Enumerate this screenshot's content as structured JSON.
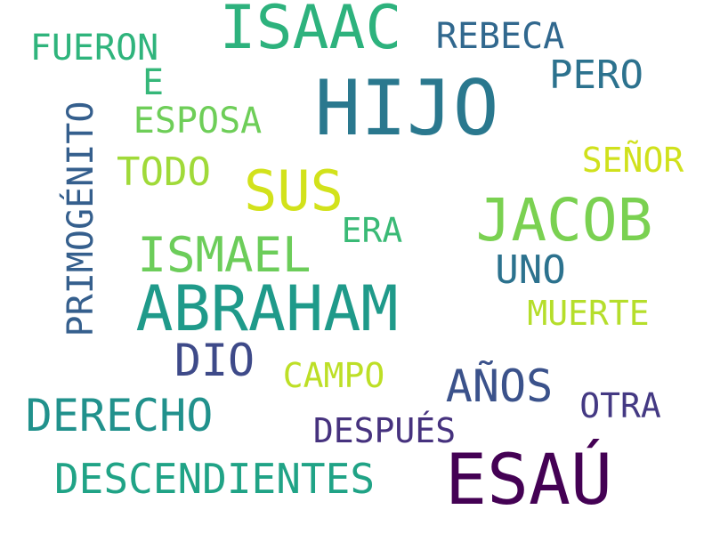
{
  "words": [
    {
      "text": "HIJO",
      "color": "#2a788e"
    },
    {
      "text": "ISAAC",
      "color": "#2db27d"
    },
    {
      "text": "ESAÚ",
      "color": "#440154"
    },
    {
      "text": "ABRAHAM",
      "color": "#1f9a8a"
    },
    {
      "text": "JACOB",
      "color": "#7ad151"
    },
    {
      "text": "SUS",
      "color": "#d2e21b"
    },
    {
      "text": "ISMAEL",
      "color": "#6ccd5a"
    },
    {
      "text": "DERECHO",
      "color": "#21918c"
    },
    {
      "text": "DESCENDIENTES",
      "color": "#20a386"
    },
    {
      "text": "AÑOS",
      "color": "#3b528b"
    },
    {
      "text": "DIO",
      "color": "#3e4a89"
    },
    {
      "text": "PRIMOGÉNITO",
      "color": "#355f8d"
    },
    {
      "text": "PERO",
      "color": "#2c728e"
    },
    {
      "text": "REBECA",
      "color": "#31688e"
    },
    {
      "text": "FUERON",
      "color": "#2fb47c"
    },
    {
      "text": "E",
      "color": "#35b779"
    },
    {
      "text": "ESPOSA",
      "color": "#6ece58"
    },
    {
      "text": "TODO",
      "color": "#a0da39"
    },
    {
      "text": "ERA",
      "color": "#3aba76"
    },
    {
      "text": "UNO",
      "color": "#2c728e"
    },
    {
      "text": "SEÑOR",
      "color": "#d0e11c"
    },
    {
      "text": "MUERTE",
      "color": "#b5de2b"
    },
    {
      "text": "CAMPO",
      "color": "#bddf26"
    },
    {
      "text": "OTRA",
      "color": "#443983"
    },
    {
      "text": "DESPUÉS",
      "color": "#46327e"
    }
  ]
}
